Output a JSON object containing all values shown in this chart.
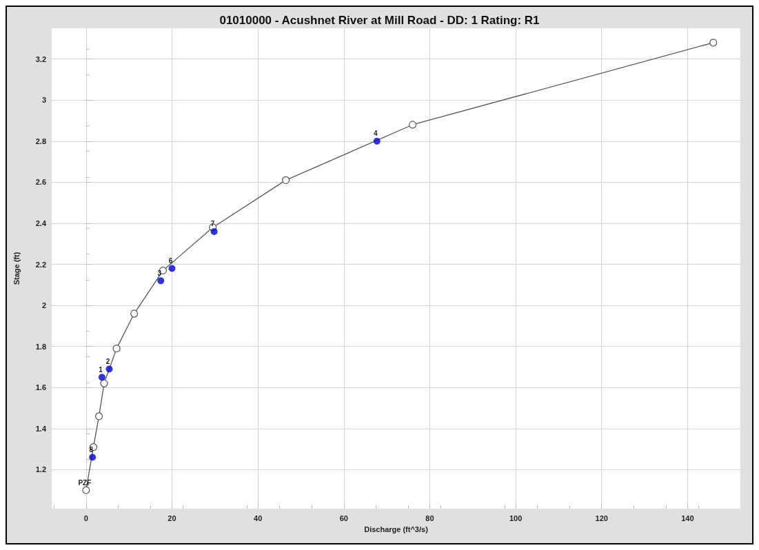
{
  "chart_data": {
    "type": "line",
    "title": "01010000 - Acushnet River at Mill Road - DD: 1 Rating: R1",
    "xlabel": "Discharge (ft^3/s)",
    "ylabel": "Stage (ft)",
    "xlim": [
      -8,
      152.3
    ],
    "xticks": [
      0,
      20,
      40,
      60,
      80,
      100,
      120,
      140
    ],
    "ylim": [
      1.01,
      3.35
    ],
    "yticks": [
      1.2,
      1.4,
      1.6,
      1.8,
      2,
      2.2,
      2.4,
      2.6,
      2.8,
      3,
      3.2
    ],
    "grid": true,
    "annotations": [
      {
        "text": "PZF",
        "x": 0,
        "y": 1.1
      },
      {
        "text": "1",
        "x": 3.7,
        "y": 1.65
      },
      {
        "text": "2",
        "x": 5.4,
        "y": 1.69
      },
      {
        "text": "3",
        "x": 17.4,
        "y": 2.12
      },
      {
        "text": "4",
        "x": 67.7,
        "y": 2.8
      },
      {
        "text": "6",
        "x": 20.0,
        "y": 2.18
      },
      {
        "text": "7",
        "x": 29.8,
        "y": 2.36
      },
      {
        "text": "8",
        "x": 1.5,
        "y": 1.26
      }
    ],
    "series": [
      {
        "color": "#555555",
        "marker": "circle",
        "x": [
          0,
          1.7,
          3.0,
          4.2,
          7.1,
          11.2,
          17.9,
          29.5,
          46.5,
          76.0,
          146
        ],
        "values": [
          1.1,
          1.31,
          1.46,
          1.62,
          1.79,
          1.96,
          2.17,
          2.38,
          2.61,
          2.88,
          3.28
        ]
      },
      {
        "type": "scatter",
        "color": "#0000cc",
        "marker": "circle",
        "x": [
          3.7,
          5.4,
          17.4,
          67.7,
          20.0,
          29.8,
          1.5
        ],
        "values": [
          1.65,
          1.69,
          2.12,
          2.8,
          2.18,
          2.36,
          1.26
        ]
      }
    ]
  }
}
